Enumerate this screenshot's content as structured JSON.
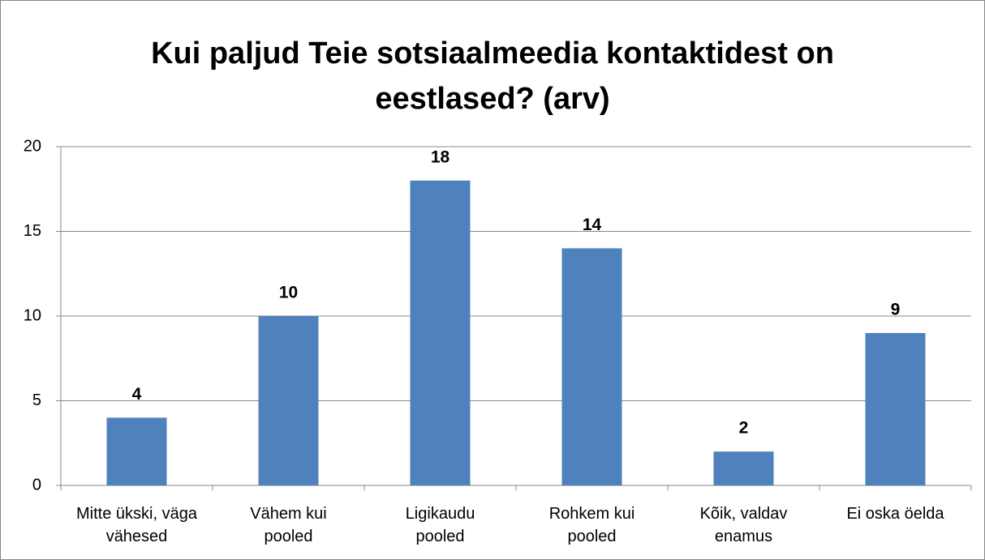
{
  "chart_data": {
    "type": "bar",
    "title": "Kui paljud Teie sotsiaalmeedia kontaktidest on eestlased? (arv)",
    "categories": [
      "Mitte ükski, väga vähesed",
      "Vähem kui pooled",
      "Ligikaudu pooled",
      "Rohkem kui pooled",
      "Kõik, valdav enamus",
      "Ei oska öelda"
    ],
    "values": [
      4,
      10,
      18,
      14,
      2,
      9
    ],
    "color": "#4f81bd",
    "ylim": [
      0,
      20
    ],
    "yticks": [
      0,
      5,
      10,
      15,
      20
    ],
    "grid": true
  }
}
